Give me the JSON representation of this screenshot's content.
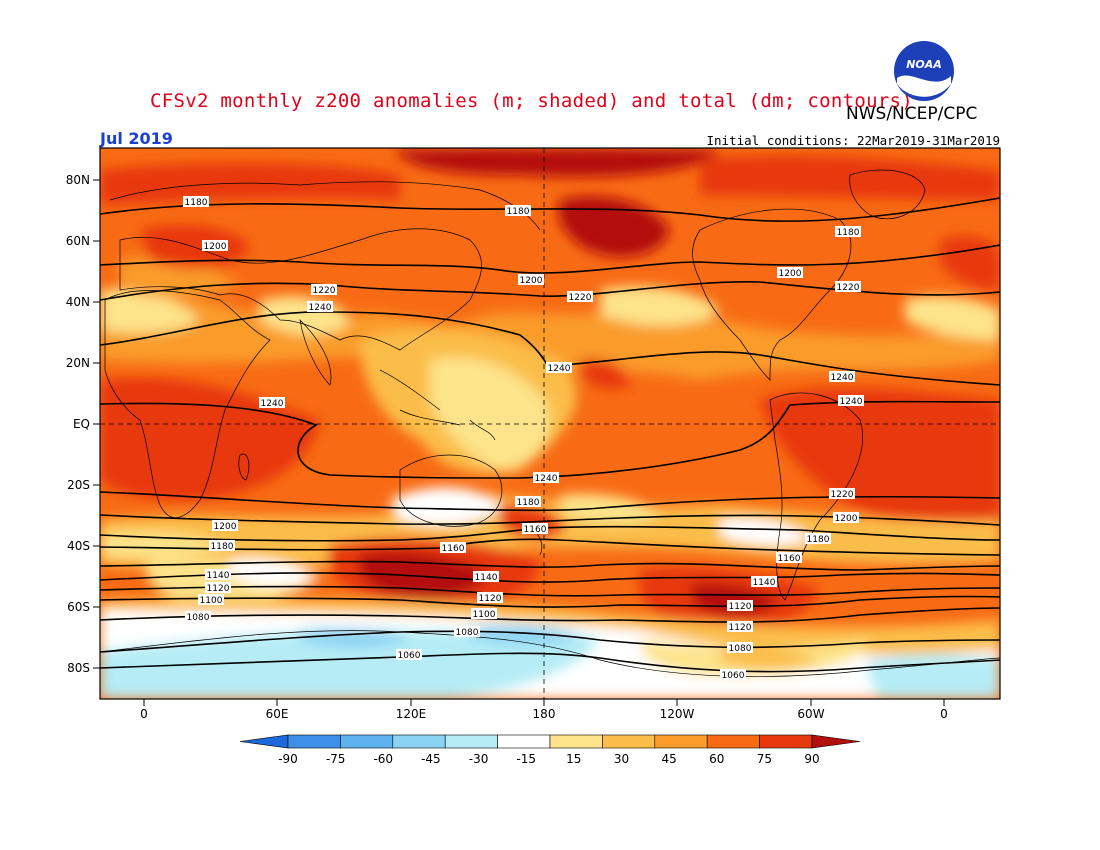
{
  "header": {
    "title": "CFSv2 monthly z200 anomalies (m; shaded) and total (dm; contours)",
    "agency": "NWS/NCEP/CPC",
    "month": "Jul 2019",
    "initial_conditions": "Initial conditions: 22Mar2019-31Mar2019",
    "logo_text": "NOAA"
  },
  "map": {
    "lat_labels": [
      "80N",
      "60N",
      "40N",
      "20N",
      "EQ",
      "20S",
      "40S",
      "60S",
      "80S"
    ],
    "lon_labels": [
      "0",
      "60E",
      "120E",
      "180",
      "120W",
      "60W",
      "0"
    ],
    "contour_labels": [
      "1180",
      "1200",
      "1220",
      "1240",
      "1240",
      "1240",
      "1240",
      "1240",
      "1220",
      "1200",
      "1180",
      "1160",
      "1140",
      "1120",
      "1100",
      "1080",
      "1060",
      "1080",
      "1100",
      "1120",
      "1140",
      "1160",
      "1180",
      "1200",
      "1220",
      "1240",
      "1180",
      "1200",
      "1220",
      "1240",
      "1220",
      "1200",
      "1180",
      "1140",
      "1120",
      "1100",
      "1080",
      "1060"
    ],
    "colors": {
      "dark_red": "#b30f0f",
      "red": "#e8380d",
      "orange": "#f86b14",
      "lt_orange": "#fa9b2c",
      "yellow_orange": "#fbbd4a",
      "yellow": "#fde38a",
      "white": "#ffffff",
      "lt_blue": "#b5ecf5",
      "blue1": "#8ad3f3",
      "blue2": "#5fb2f0",
      "blue3": "#3d8fe8",
      "blue4": "#1f67dc"
    }
  },
  "colorbar": {
    "labels": [
      "-90",
      "-75",
      "-60",
      "-45",
      "-30",
      "-15",
      "15",
      "30",
      "45",
      "60",
      "75",
      "90"
    ],
    "colors": [
      "#1f67dc",
      "#3d8fe8",
      "#5fb2f0",
      "#8ad3f3",
      "#b5ecf5",
      "#ffffff",
      "#fde38a",
      "#fbbd4a",
      "#fa9b2c",
      "#f86b14",
      "#e8380d",
      "#b30f0f"
    ]
  }
}
